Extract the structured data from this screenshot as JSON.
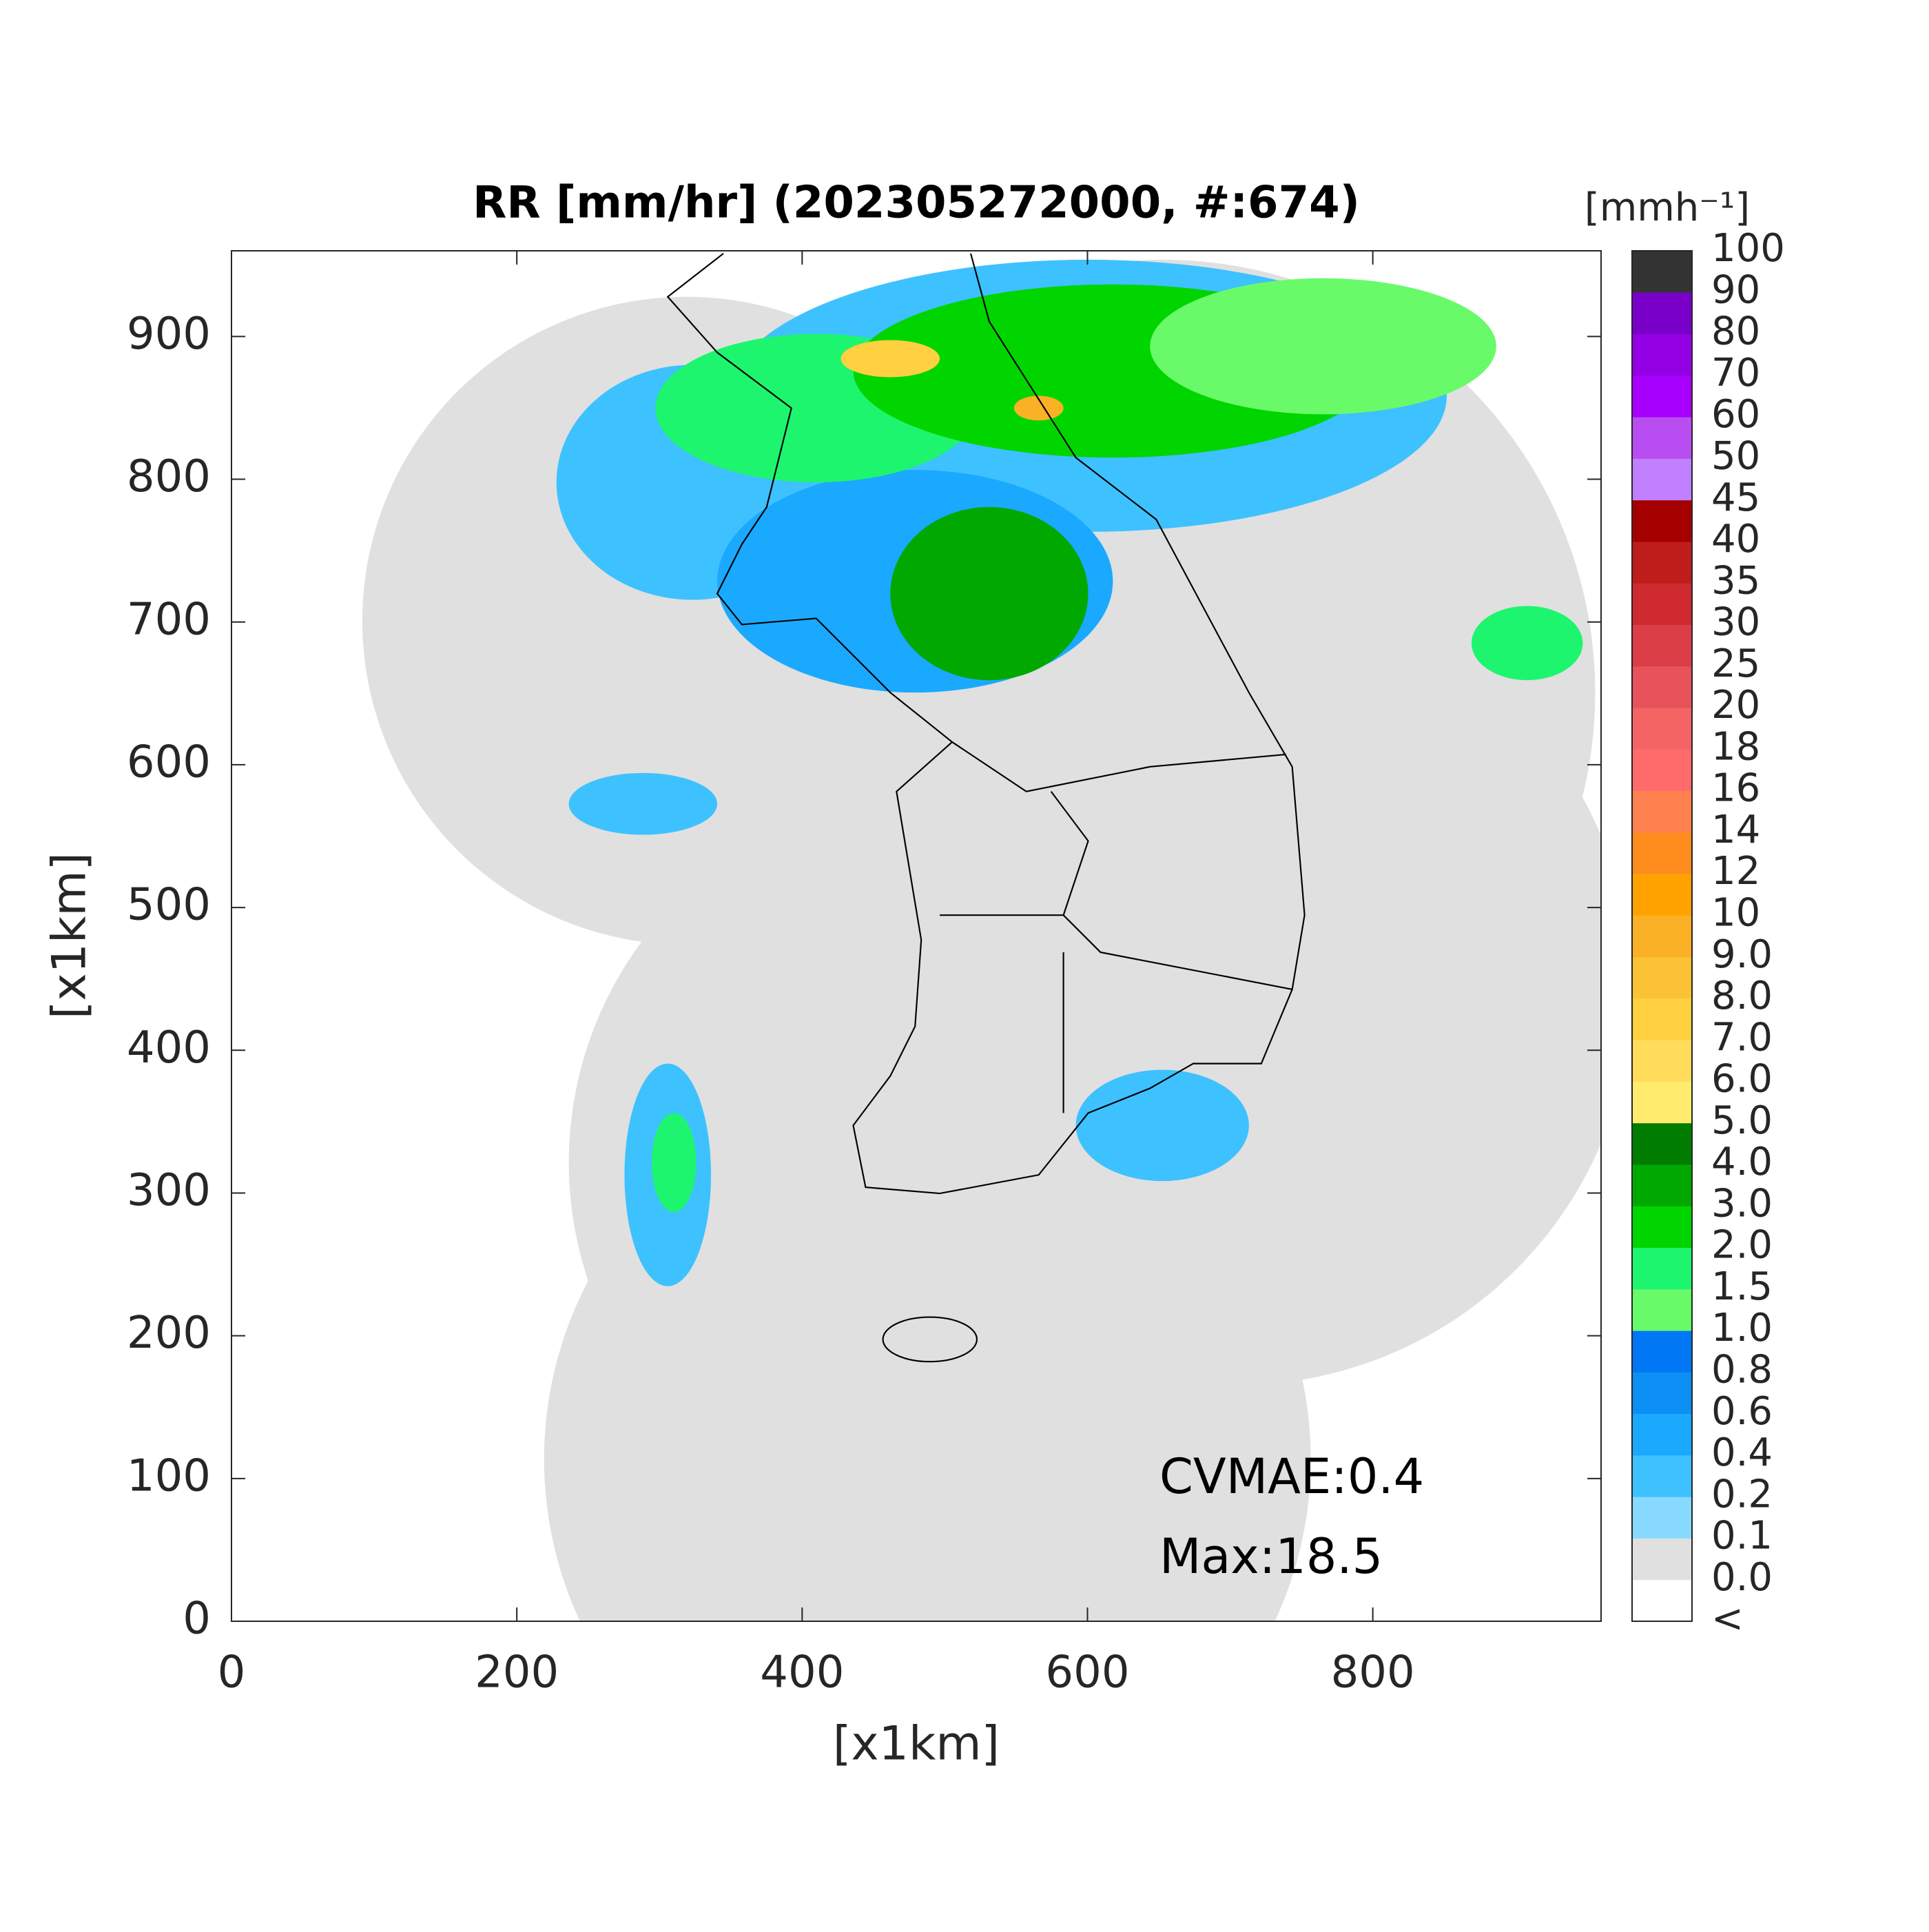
{
  "chart_data": {
    "type": "radar-map",
    "title": "RR [mm/hr] (202305272000, #:674)",
    "xlabel": "[x1km]",
    "ylabel": "[x1km]",
    "xlim": [
      0,
      960
    ],
    "ylim": [
      0,
      960
    ],
    "xticks": [
      0,
      200,
      400,
      600,
      800
    ],
    "yticks": [
      0,
      100,
      200,
      300,
      400,
      500,
      600,
      700,
      800,
      900
    ],
    "annotations": [
      "CVMAE:0.4",
      "Max:18.5"
    ],
    "colorbar": {
      "title": "[mmh⁻¹]",
      "labels": [
        "<",
        "0.0",
        "0.1",
        "0.2",
        "0.4",
        "0.6",
        "0.8",
        "1.0",
        "1.5",
        "2.0",
        "3.0",
        "4.0",
        "5.0",
        "6.0",
        "7.0",
        "8.0",
        "9.0",
        "10",
        "12",
        "14",
        "16",
        "18",
        "20",
        "25",
        "30",
        "35",
        "40",
        "45",
        "50",
        "60",
        "70",
        "80",
        "90",
        "100"
      ],
      "colors": [
        "#ffffff",
        "#e0e0e0",
        "#87d9ff",
        "#3ec1ff",
        "#1aa9ff",
        "#0b8ff5",
        "#0077f5",
        "#69fa69",
        "#1ef56e",
        "#00d500",
        "#00a800",
        "#007d00",
        "#ffeb6e",
        "#ffdc5a",
        "#ffd040",
        "#fcc235",
        "#fbb125",
        "#ffa200",
        "#ff8d1e",
        "#ff8150",
        "#ff6a6a",
        "#f56464",
        "#e8525a",
        "#dc3e48",
        "#cf2a30",
        "#bf1c1c",
        "#a50000",
        "#c080ff",
        "#b84ef2",
        "#a800ff",
        "#9300e4",
        "#7800c8",
        "#333333"
      ]
    }
  }
}
